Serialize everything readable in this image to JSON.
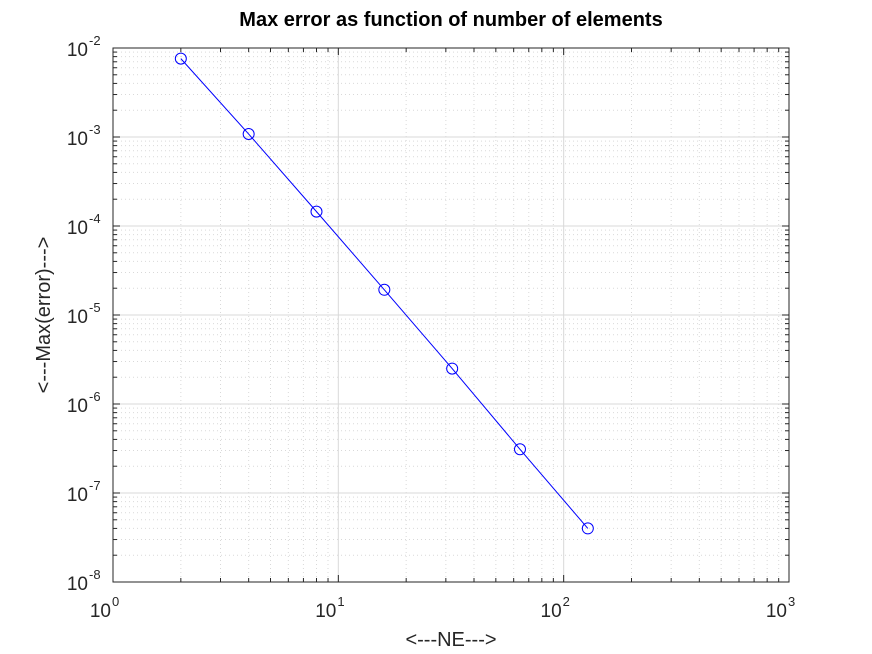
{
  "chart_data": {
    "type": "line",
    "title": "Max error as function of number of elements",
    "xlabel": "<---NE--->",
    "ylabel": "<---Max(error)--->",
    "xscale": "log",
    "yscale": "log",
    "xlim": [
      1,
      1000
    ],
    "ylim": [
      1e-08,
      0.01
    ],
    "grid": true,
    "minor_grid": true,
    "x_ticks": [
      {
        "base": "10",
        "exp": "0",
        "value": 1
      },
      {
        "base": "10",
        "exp": "1",
        "value": 10
      },
      {
        "base": "10",
        "exp": "2",
        "value": 100
      },
      {
        "base": "10",
        "exp": "3",
        "value": 1000
      }
    ],
    "y_ticks": [
      {
        "base": "10",
        "exp": "-8",
        "value": 1e-08
      },
      {
        "base": "10",
        "exp": "-7",
        "value": 1e-07
      },
      {
        "base": "10",
        "exp": "-6",
        "value": 1e-06
      },
      {
        "base": "10",
        "exp": "-5",
        "value": 1e-05
      },
      {
        "base": "10",
        "exp": "-4",
        "value": 0.0001
      },
      {
        "base": "10",
        "exp": "-3",
        "value": 0.001
      },
      {
        "base": "10",
        "exp": "-2",
        "value": 0.01
      }
    ],
    "series": [
      {
        "marker": "circle",
        "line_color": "#0000ff",
        "marker_color": "#0000ff",
        "x": [
          2,
          4,
          8,
          16,
          32,
          64,
          128
        ],
        "y": [
          0.0076,
          0.00108,
          0.000145,
          1.92e-05,
          2.5e-06,
          3.1e-07,
          4e-08
        ]
      }
    ]
  },
  "colors": {
    "axis": "#262626",
    "grid": "#d9d9d9",
    "series": "#0000ff"
  }
}
